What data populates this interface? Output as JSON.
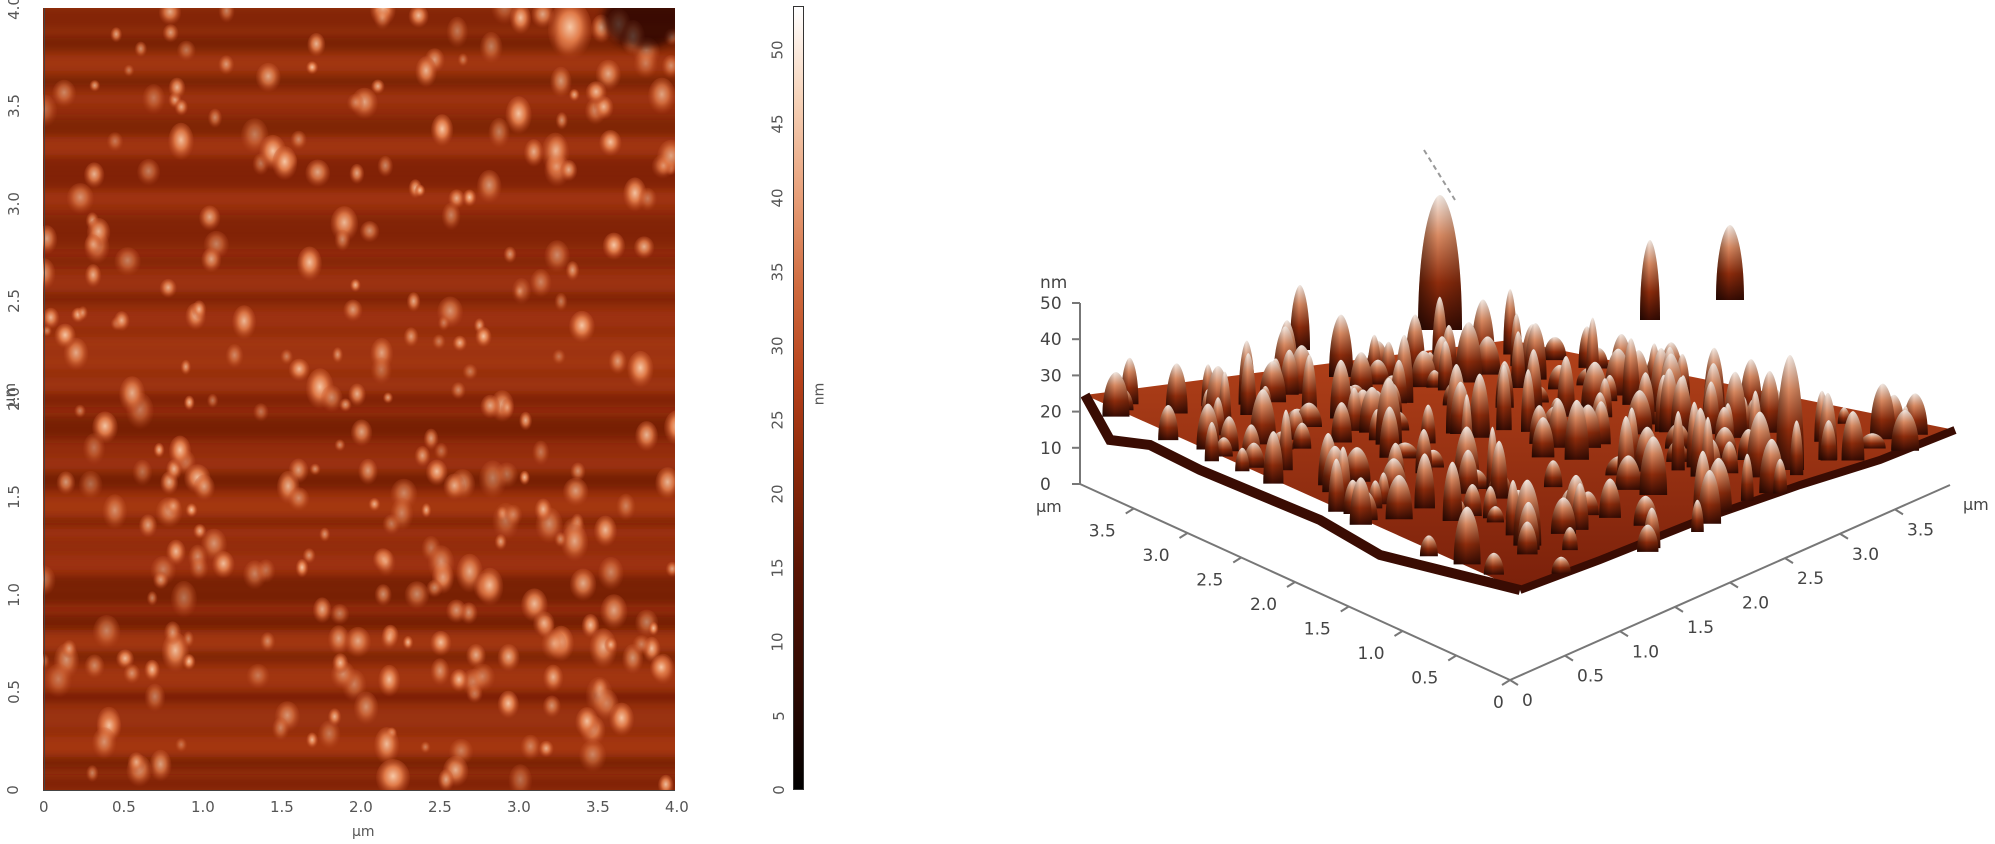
{
  "chart_data": [
    {
      "type": "heatmap",
      "title": "",
      "description": "2D AFM topography height map",
      "xlabel": "µm",
      "ylabel": "µm",
      "xlim": [
        0,
        4.0
      ],
      "ylim": [
        0,
        4.0
      ],
      "x_ticks": [
        "0",
        "0.5",
        "1.0",
        "1.5",
        "2.0",
        "2.5",
        "3.0",
        "3.5",
        "4.0"
      ],
      "y_ticks": [
        "0",
        "0.5",
        "1.0",
        "1.5",
        "2.0",
        "2.5",
        "3.0",
        "3.5",
        "4.0"
      ],
      "colorbar": {
        "label": "nm",
        "range": [
          0,
          53
        ],
        "ticks": [
          "0",
          "5",
          "10",
          "15",
          "20",
          "25",
          "30",
          "35",
          "40",
          "45",
          "50"
        ],
        "colormap": [
          "#000000",
          "#5a1404",
          "#b5401a",
          "#e8a07a",
          "#ffffff"
        ]
      },
      "grid": false
    },
    {
      "type": "surface3d",
      "title": "",
      "description": "3D AFM surface topography",
      "zlabel": "nm",
      "z_ticks": [
        "0",
        "10",
        "20",
        "30",
        "40",
        "50"
      ],
      "zlim": [
        0,
        50
      ],
      "x_axis_left": {
        "label": "µm",
        "ticks": [
          "0",
          "0.5",
          "1.0",
          "1.5",
          "2.0",
          "2.5",
          "3.0",
          "3.5"
        ]
      },
      "x_axis_right": {
        "label": "µm",
        "ticks": [
          "0",
          "0.5",
          "1.0",
          "1.5",
          "2.0",
          "2.5",
          "3.0",
          "3.5"
        ]
      },
      "grid": false
    }
  ],
  "labels": {
    "x_unit": "µm",
    "y_unit": "µm",
    "cbar_unit": "nm",
    "z_unit": "nm",
    "left3d_unit": "µm",
    "right3d_unit": "µm"
  }
}
